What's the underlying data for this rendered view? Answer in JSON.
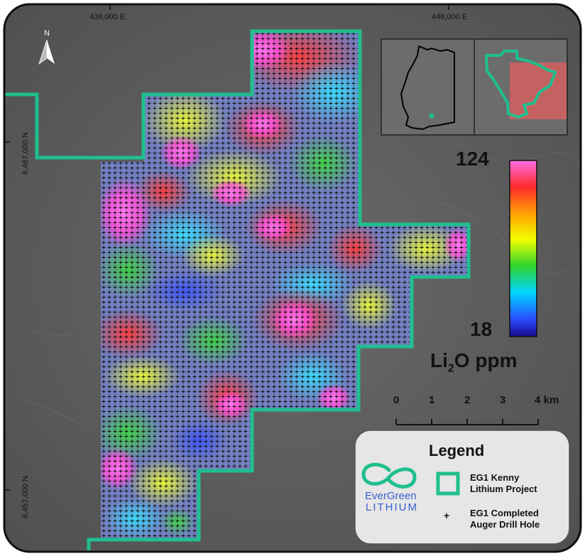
{
  "map": {
    "coords": {
      "e1": "436,000 E",
      "e2": "446,000 E",
      "n1": "6,467,000 N",
      "n2": "6,457,000 N"
    },
    "north_label": "N",
    "colorbar": {
      "max": "124",
      "min": "18",
      "unit_main": "Li",
      "unit_sub": "2",
      "unit_tail": "O ppm",
      "colors": [
        "#ff6ee8",
        "#ff2a2a",
        "#ffae00",
        "#f0ff00",
        "#2fd42f",
        "#00d6ff",
        "#2a4dff",
        "#1a0a8c"
      ]
    },
    "scale_bar": {
      "ticks": [
        "0",
        "1",
        "2",
        "3",
        "4 km"
      ]
    },
    "legend": {
      "title": "Legend",
      "item1_line1": "EG1 Kenny",
      "item1_line2": "Lithium Project",
      "item2_line1": "EG1 Completed",
      "item2_line2": "Auger Drill Hole",
      "drill_symbol": "+",
      "logo_line1": "EverGreen",
      "logo_line2": "LITHIUM",
      "boundary_color": "#1fbf8f"
    }
  }
}
